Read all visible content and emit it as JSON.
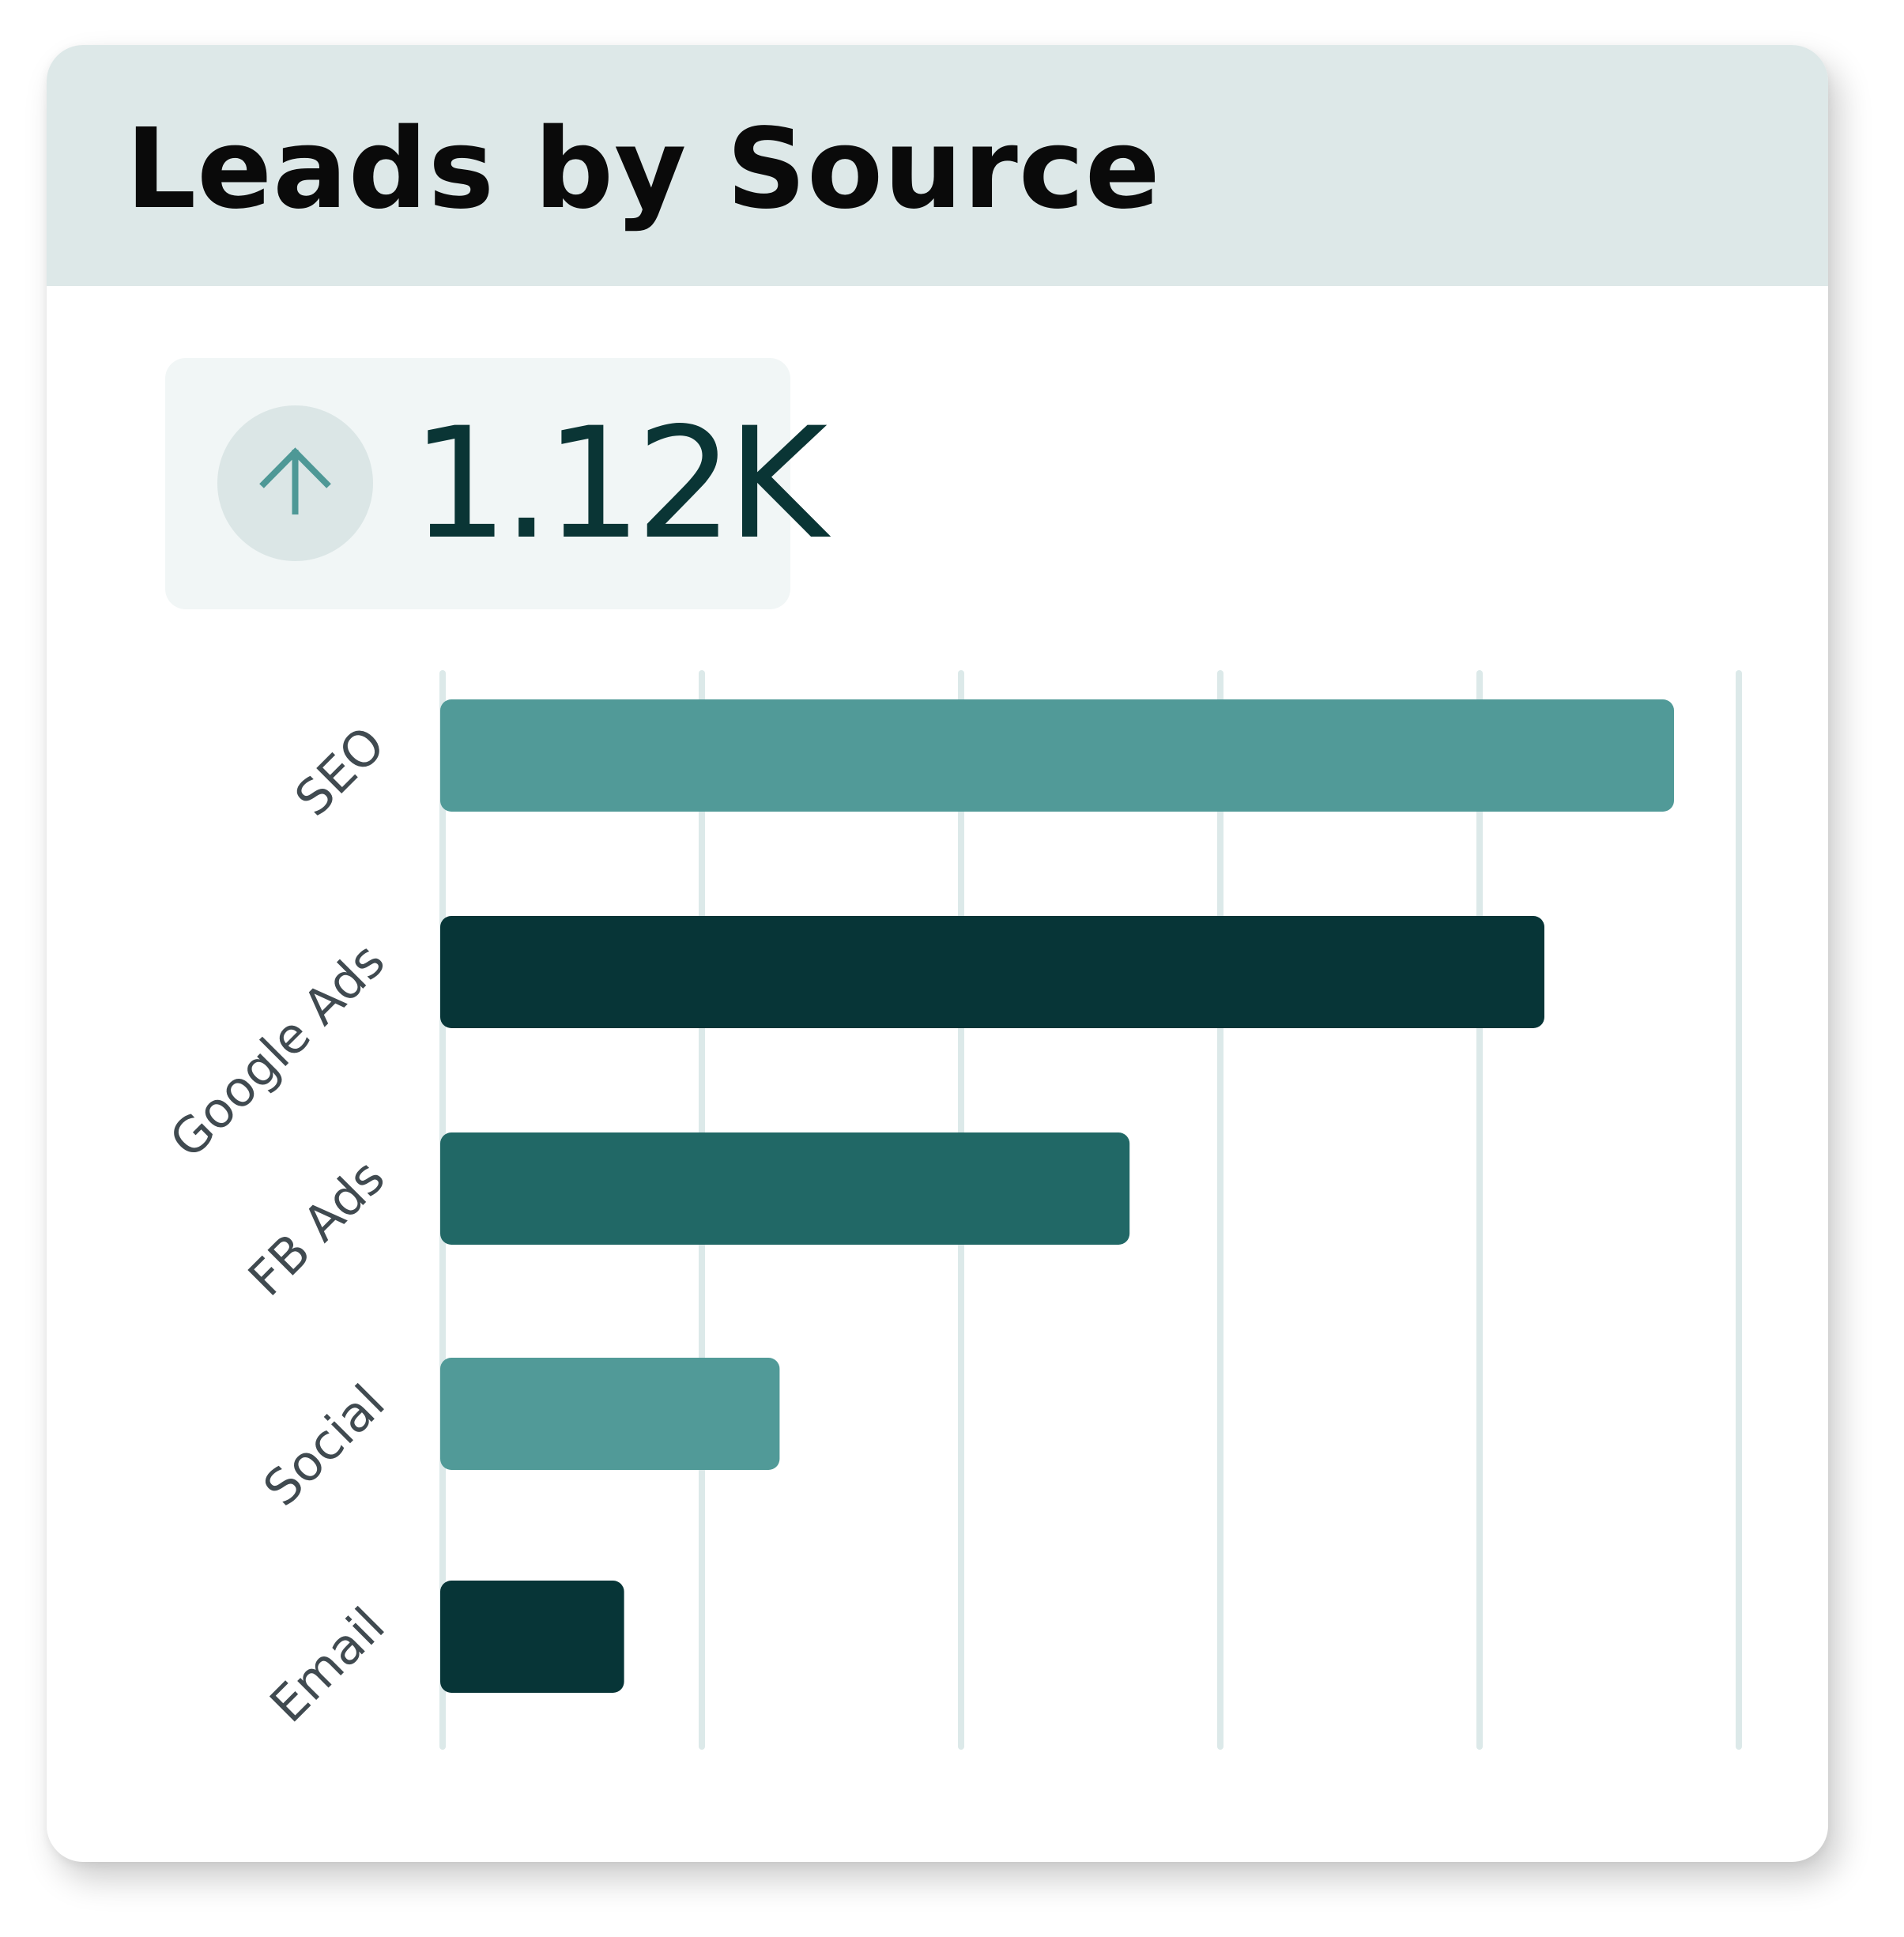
{
  "card": {
    "title": "Leads by Source"
  },
  "kpi": {
    "value": "1.12K",
    "icon": "arrow-up-icon",
    "trend": "up"
  },
  "colors": {
    "header_bg": "#dde8e8",
    "kpi_bg": "#f1f6f6",
    "icon_circle": "#dbe6e6",
    "icon_arrow": "#4e9896",
    "value_text": "#0a3535",
    "gridline": "#dce9e9",
    "bar_light": "#519a98",
    "bar_dark": "#073537",
    "bar_mid": "#216866"
  },
  "chart_data": {
    "type": "bar",
    "orientation": "horizontal",
    "categories": [
      "SEO",
      "Google Ads",
      "FB Ads",
      "Social",
      "Email"
    ],
    "values": [
      4.75,
      4.25,
      2.65,
      1.3,
      0.7
    ],
    "xlim": [
      0,
      5
    ],
    "grid": true,
    "bar_colors": [
      "#519a98",
      "#073537",
      "#216866",
      "#519a98",
      "#073537"
    ],
    "tick_labels_shown": false
  }
}
